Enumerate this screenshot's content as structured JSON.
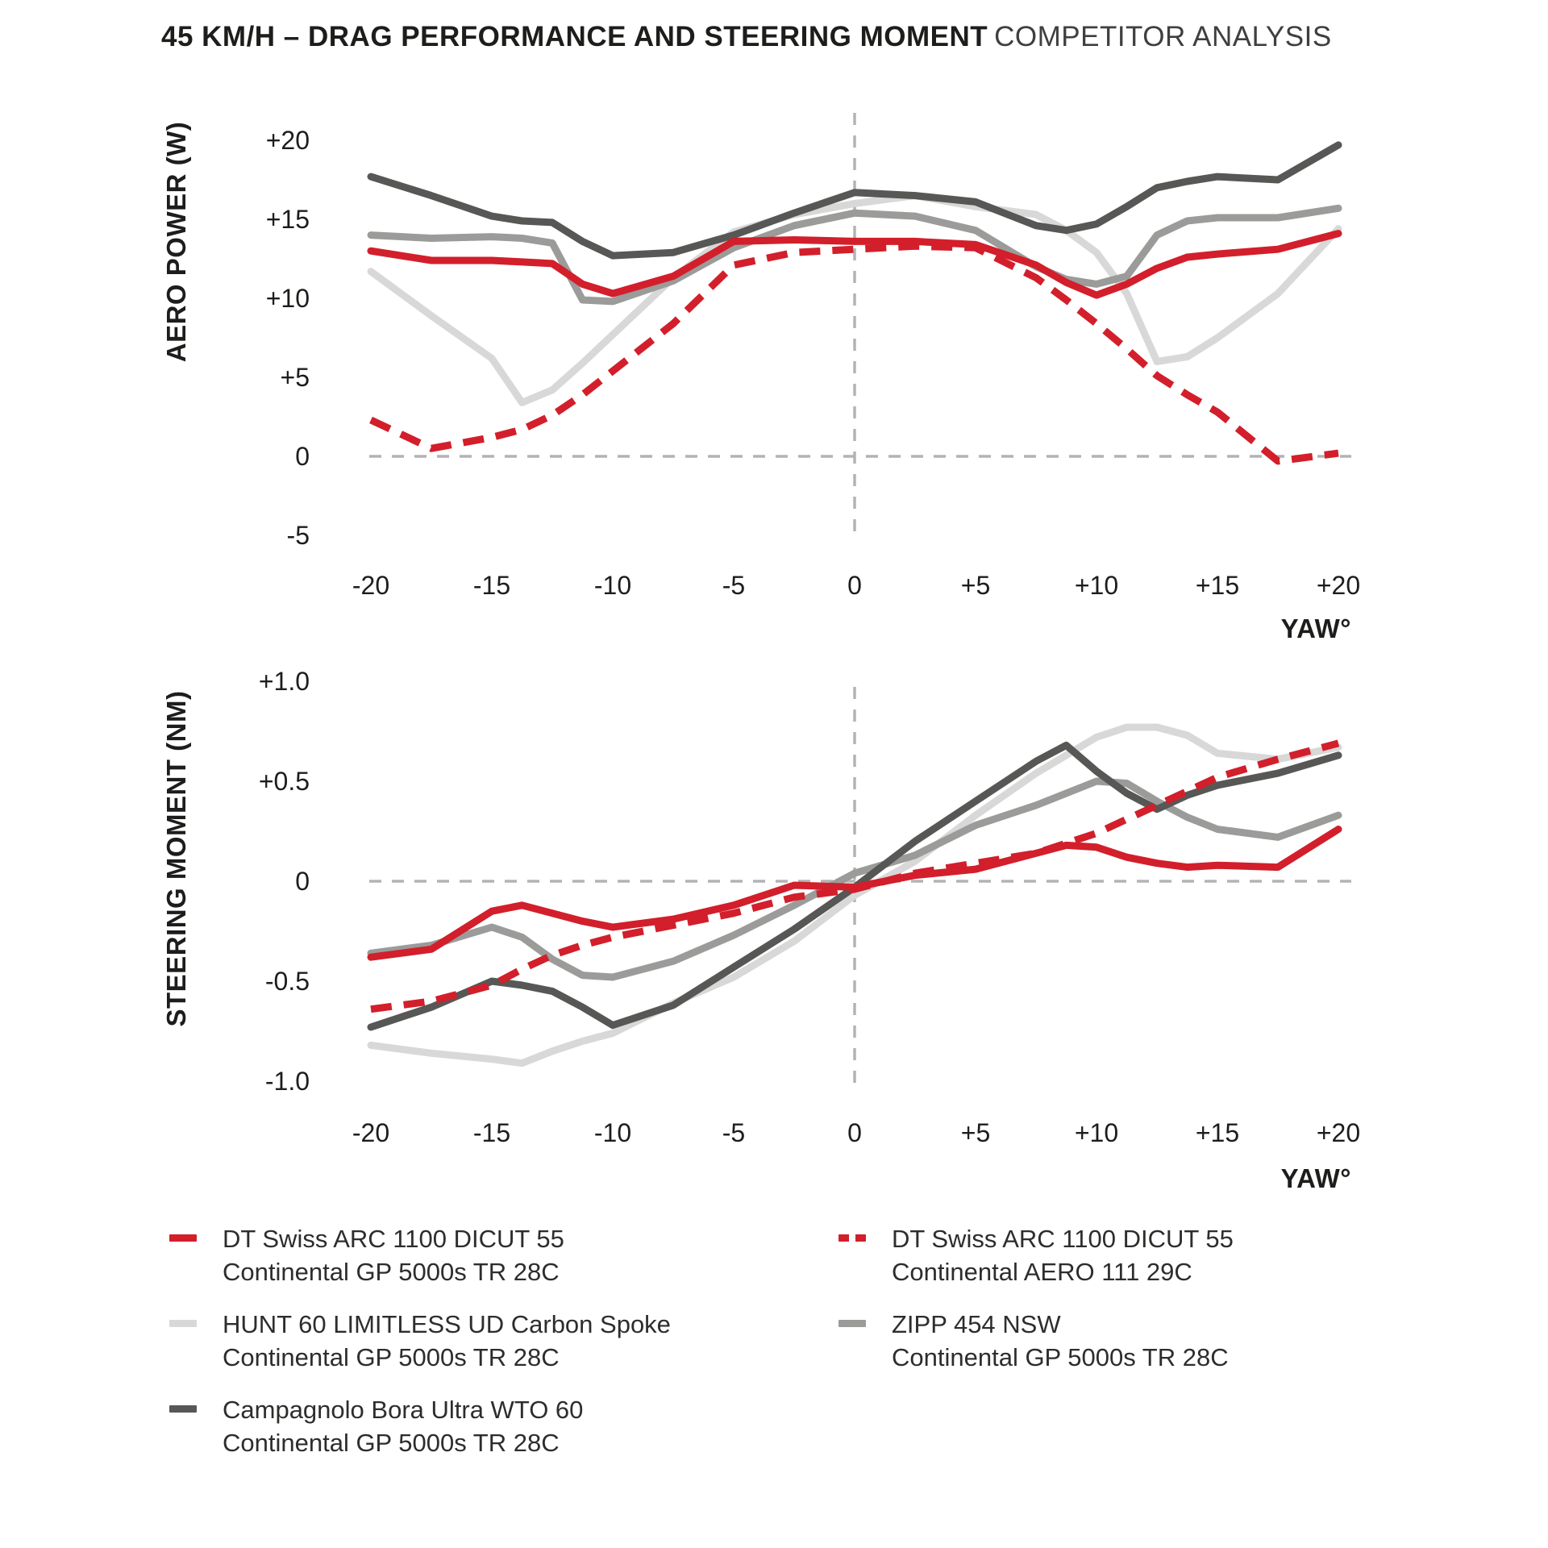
{
  "title": {
    "bold": "45 KM/H – DRAG PERFORMANCE AND STEERING MOMENT",
    "light": "COMPETITOR ANALYSIS"
  },
  "colors": {
    "red": "#d21f2b",
    "dark_gray": "#575756",
    "medium_gray": "#9b9b9a",
    "light_gray": "#d8d8d8",
    "grid": "#b3b3b3",
    "text": "#1d1d1b"
  },
  "chart_data": [
    {
      "id": "aero-power",
      "type": "line",
      "ylabel": "AERO POWER (W)",
      "xlabel": "YAW°",
      "xlim": [
        -20,
        20
      ],
      "ylim": [
        -5,
        20
      ],
      "grid": "dashed zero lines only",
      "legend_position": "below both charts",
      "x": [
        -20,
        -17.5,
        -15,
        -13.75,
        -12.5,
        -11.25,
        -10,
        -7.5,
        -5,
        -2.5,
        0,
        2.5,
        5,
        7.5,
        8.75,
        10,
        11.25,
        12.5,
        13.75,
        15,
        17.5,
        20
      ],
      "yticks": [
        {
          "value": 20,
          "label": "+20"
        },
        {
          "value": 15,
          "label": "+15"
        },
        {
          "value": 10,
          "label": "+10"
        },
        {
          "value": 5,
          "label": "+5"
        },
        {
          "value": 0,
          "label": "0"
        },
        {
          "value": -5,
          "label": "-5"
        }
      ],
      "xticks": [
        {
          "value": -20,
          "label": "-20"
        },
        {
          "value": -15,
          "label": "-15"
        },
        {
          "value": -10,
          "label": "-10"
        },
        {
          "value": -5,
          "label": "-5"
        },
        {
          "value": 0,
          "label": "0"
        },
        {
          "value": 5,
          "label": "+5"
        },
        {
          "value": 10,
          "label": "+10"
        },
        {
          "value": 15,
          "label": "+15"
        },
        {
          "value": 20,
          "label": "+20"
        }
      ],
      "series": [
        {
          "key": "hunt",
          "name": "HUNT 60 LIMITLESS UD Carbon Spoke / Continental GP 5000s TR 28C",
          "color": "#d8d8d8",
          "dashed": false,
          "values": [
            11.7,
            8.9,
            6.2,
            3.4,
            4.2,
            5.9,
            7.7,
            11.3,
            14.2,
            15.3,
            16.0,
            16.5,
            15.8,
            15.3,
            14.3,
            12.9,
            10.3,
            6.0,
            6.3,
            7.5,
            10.3,
            14.4
          ]
        },
        {
          "key": "zipp",
          "name": "ZIPP 454 NSW / Continental GP 5000s TR 28C",
          "color": "#9b9b9a",
          "dashed": false,
          "values": [
            14.0,
            13.8,
            13.9,
            13.8,
            13.5,
            9.9,
            9.8,
            11.1,
            13.2,
            14.6,
            15.4,
            15.2,
            14.3,
            12.0,
            11.2,
            10.9,
            11.4,
            14.0,
            14.9,
            15.1,
            15.1,
            15.7
          ]
        },
        {
          "key": "campagnolo",
          "name": "Campagnolo Bora Ultra WTO 60 / Continental GP 5000s TR 28C",
          "color": "#575756",
          "dashed": false,
          "values": [
            17.7,
            16.5,
            15.2,
            14.9,
            14.8,
            13.6,
            12.7,
            12.9,
            14.0,
            15.4,
            16.7,
            16.5,
            16.1,
            14.6,
            14.3,
            14.7,
            15.8,
            17.0,
            17.4,
            17.7,
            17.5,
            19.7
          ]
        },
        {
          "key": "dt-aero111",
          "name": "DT Swiss ARC 1100 DICUT 55 / Continental AERO 111 29C",
          "color": "#d21f2b",
          "dashed": true,
          "values": [
            2.3,
            0.5,
            1.2,
            1.7,
            2.6,
            3.9,
            5.4,
            8.4,
            12.1,
            12.9,
            13.1,
            13.3,
            13.2,
            11.3,
            9.9,
            8.4,
            6.8,
            5.1,
            3.9,
            2.8,
            -0.3,
            0.2
          ]
        },
        {
          "key": "dt-gp5000",
          "name": "DT Swiss ARC 1100 DICUT 55 / Continental GP 5000s TR 28C",
          "color": "#d21f2b",
          "dashed": false,
          "values": [
            13.0,
            12.4,
            12.4,
            12.3,
            12.2,
            10.9,
            10.3,
            11.4,
            13.6,
            13.7,
            13.6,
            13.6,
            13.4,
            12.1,
            11.0,
            10.2,
            10.9,
            11.9,
            12.6,
            12.8,
            13.1,
            14.1
          ]
        }
      ]
    },
    {
      "id": "steering-moment",
      "type": "line",
      "ylabel": "STEERING MOMENT (NM)",
      "xlabel": "YAW°",
      "xlim": [
        -20,
        20
      ],
      "ylim": [
        -1.0,
        1.0
      ],
      "grid": "dashed zero lines only",
      "legend_position": "below both charts",
      "x": [
        -20,
        -17.5,
        -15,
        -13.75,
        -12.5,
        -11.25,
        -10,
        -7.5,
        -5,
        -2.5,
        0,
        2.5,
        5,
        7.5,
        8.75,
        10,
        11.25,
        12.5,
        13.75,
        15,
        17.5,
        20
      ],
      "yticks": [
        {
          "value": 1.0,
          "label": "+1.0"
        },
        {
          "value": 0.5,
          "label": "+0.5"
        },
        {
          "value": 0,
          "label": "0"
        },
        {
          "value": -0.5,
          "label": "-0.5"
        },
        {
          "value": -1.0,
          "label": "-1.0"
        }
      ],
      "xticks": [
        {
          "value": -20,
          "label": "-20"
        },
        {
          "value": -15,
          "label": "-15"
        },
        {
          "value": -10,
          "label": "-10"
        },
        {
          "value": -5,
          "label": "-5"
        },
        {
          "value": 0,
          "label": "0"
        },
        {
          "value": 5,
          "label": "+5"
        },
        {
          "value": 10,
          "label": "+10"
        },
        {
          "value": 15,
          "label": "+15"
        },
        {
          "value": 20,
          "label": "+20"
        }
      ],
      "series": [
        {
          "key": "hunt",
          "name": "HUNT 60 LIMITLESS UD Carbon Spoke / Continental GP 5000s TR 28C",
          "color": "#d8d8d8",
          "dashed": false,
          "values": [
            -0.82,
            -0.86,
            -0.89,
            -0.91,
            -0.85,
            -0.8,
            -0.76,
            -0.61,
            -0.48,
            -0.3,
            -0.07,
            0.1,
            0.33,
            0.54,
            0.63,
            0.72,
            0.77,
            0.77,
            0.73,
            0.64,
            0.61,
            0.67
          ]
        },
        {
          "key": "zipp",
          "name": "ZIPP 454 NSW / Continental GP 5000s TR 28C",
          "color": "#9b9b9a",
          "dashed": false,
          "values": [
            -0.36,
            -0.32,
            -0.23,
            -0.28,
            -0.39,
            -0.47,
            -0.48,
            -0.4,
            -0.27,
            -0.12,
            0.04,
            0.13,
            0.28,
            0.38,
            0.44,
            0.5,
            0.49,
            0.4,
            0.32,
            0.26,
            0.22,
            0.33
          ]
        },
        {
          "key": "campagnolo",
          "name": "Campagnolo Bora Ultra WTO 60 / Continental GP 5000s TR 28C",
          "color": "#575756",
          "dashed": false,
          "values": [
            -0.73,
            -0.63,
            -0.5,
            -0.52,
            -0.55,
            -0.63,
            -0.72,
            -0.62,
            -0.43,
            -0.24,
            -0.03,
            0.2,
            0.4,
            0.6,
            0.68,
            0.55,
            0.44,
            0.36,
            0.43,
            0.48,
            0.54,
            0.63
          ]
        },
        {
          "key": "dt-aero111",
          "name": "DT Swiss ARC 1100 DICUT 55 / Continental AERO 111 29C",
          "color": "#d21f2b",
          "dashed": true,
          "values": [
            -0.64,
            -0.6,
            -0.52,
            -0.44,
            -0.37,
            -0.32,
            -0.28,
            -0.22,
            -0.16,
            -0.08,
            -0.04,
            0.04,
            0.09,
            0.14,
            0.19,
            0.24,
            0.31,
            0.38,
            0.45,
            0.52,
            0.61,
            0.69
          ]
        },
        {
          "key": "dt-gp5000",
          "name": "DT Swiss ARC 1100 DICUT 55 / Continental GP 5000s TR 28C",
          "color": "#d21f2b",
          "dashed": false,
          "values": [
            -0.38,
            -0.34,
            -0.15,
            -0.12,
            -0.16,
            -0.2,
            -0.23,
            -0.19,
            -0.12,
            -0.02,
            -0.03,
            0.03,
            0.06,
            0.14,
            0.18,
            0.17,
            0.12,
            0.09,
            0.07,
            0.08,
            0.07,
            0.26
          ]
        }
      ]
    }
  ],
  "legend": {
    "columns": [
      [
        {
          "key": "dt-gp5000",
          "line1": "DT Swiss ARC 1100 DICUT 55",
          "line2": "Continental GP 5000s TR 28C",
          "swatch": {
            "color": "#d21f2b",
            "dashed": false
          }
        },
        {
          "key": "hunt",
          "line1": "HUNT 60 LIMITLESS UD Carbon Spoke",
          "line2": "Continental GP 5000s TR 28C",
          "swatch": {
            "color": "#d8d8d8",
            "dashed": false
          }
        },
        {
          "key": "campagnolo",
          "line1": "Campagnolo Bora Ultra WTO 60",
          "line2": "Continental GP 5000s TR 28C",
          "swatch": {
            "color": "#575756",
            "dashed": false
          }
        }
      ],
      [
        {
          "key": "dt-aero111",
          "line1": "DT Swiss ARC 1100 DICUT 55",
          "line2": "Continental AERO 111 29C",
          "swatch": {
            "color": "#d21f2b",
            "dashed": true
          }
        },
        {
          "key": "zipp",
          "line1": "ZIPP 454 NSW",
          "line2": "Continental GP 5000s TR 28C",
          "swatch": {
            "color": "#9b9b9a",
            "dashed": false
          }
        }
      ]
    ]
  }
}
